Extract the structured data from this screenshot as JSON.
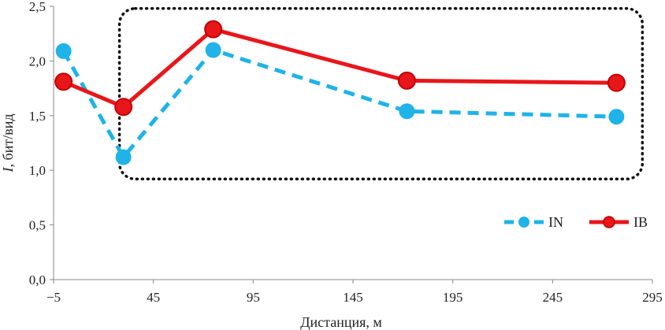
{
  "chart_data": {
    "type": "line",
    "title": "",
    "xlabel": "Дистанция, м",
    "ylabel_italic": "I",
    "ylabel_rest": ", бит/вид",
    "xlim": [
      -5,
      295
    ],
    "ylim": [
      0,
      2.5
    ],
    "xticks": [
      -5,
      45,
      95,
      145,
      195,
      245,
      295
    ],
    "xtick_labels": [
      "−5",
      "45",
      "95",
      "145",
      "195",
      "245",
      "295"
    ],
    "yticks": [
      0,
      0.5,
      1.0,
      1.5,
      2.0,
      2.5
    ],
    "ytick_labels": [
      "0,0",
      "0,5",
      "1,0",
      "1,5",
      "2,0",
      "2,5"
    ],
    "grid": false,
    "legend_position": "bottom-right",
    "series": [
      {
        "name": "IN",
        "color": "#1fb3e8",
        "style": "dashed",
        "x": [
          0,
          30,
          75,
          172,
          277
        ],
        "y": [
          2.09,
          1.12,
          2.1,
          1.54,
          1.49
        ]
      },
      {
        "name": "IB",
        "color": "#e8161b",
        "style": "solid",
        "x": [
          0,
          30,
          75,
          172,
          277
        ],
        "y": [
          1.81,
          1.58,
          2.29,
          1.82,
          1.8
        ]
      }
    ],
    "annotation": {
      "type": "dotted-rounded-box",
      "x_range": [
        28,
        290
      ],
      "y_range": [
        0.92,
        2.48
      ]
    }
  }
}
